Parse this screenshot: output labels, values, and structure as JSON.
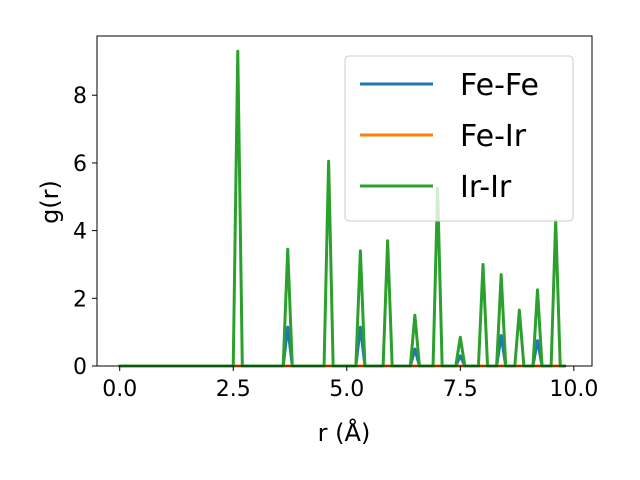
{
  "chart_data": {
    "type": "line",
    "xlabel": "r (Å)",
    "ylabel": "g(r)",
    "xlim": [
      -0.5,
      10.4
    ],
    "ylim": [
      0,
      9.75
    ],
    "xticks": [
      "0.0",
      "2.5",
      "5.0",
      "7.5",
      "10.0"
    ],
    "yticks": [
      "0",
      "2",
      "4",
      "6",
      "8"
    ],
    "xtick_values": [
      0,
      2.5,
      5,
      7.5,
      10
    ],
    "ytick_values": [
      0,
      2,
      4,
      6,
      8
    ],
    "legend_position": "top-right",
    "grid": false,
    "series": [
      {
        "name": "Fe-Fe",
        "color": "#1f77b4",
        "x": [
          0,
          3.6,
          3.7,
          3.8,
          5.2,
          5.3,
          5.4,
          6.4,
          6.5,
          6.6,
          7.4,
          7.5,
          7.6,
          8.3,
          8.4,
          8.5,
          9.1,
          9.2,
          9.3,
          9.8
        ],
        "y": [
          0,
          0,
          1.15,
          0,
          0,
          1.15,
          0,
          0,
          0.5,
          0,
          0,
          0.3,
          0,
          0,
          0.9,
          0,
          0,
          0.75,
          0,
          0
        ]
      },
      {
        "name": "Fe-Ir",
        "color": "#ff7f0e",
        "x": [
          0,
          9.8
        ],
        "y": [
          0,
          0
        ]
      },
      {
        "name": "Ir-Ir",
        "color": "#2ca02c",
        "x": [
          0,
          2.5,
          2.6,
          2.7,
          3.6,
          3.7,
          3.8,
          4.5,
          4.6,
          4.7,
          5.2,
          5.3,
          5.4,
          5.8,
          5.9,
          6.0,
          6.4,
          6.5,
          6.6,
          6.9,
          7.0,
          7.1,
          7.4,
          7.5,
          7.6,
          7.9,
          8.0,
          8.1,
          8.3,
          8.4,
          8.5,
          8.7,
          8.8,
          8.9,
          9.1,
          9.2,
          9.3,
          9.5,
          9.6,
          9.7,
          9.8
        ],
        "y": [
          0,
          0,
          9.3,
          0,
          0,
          3.45,
          0,
          0,
          6.05,
          0,
          0,
          3.4,
          0,
          0,
          3.7,
          0,
          0,
          1.5,
          0,
          0,
          5.25,
          0,
          0,
          0.85,
          0,
          0,
          3.0,
          0,
          0,
          2.7,
          0,
          0,
          1.65,
          0,
          0,
          2.25,
          0,
          0,
          4.3,
          0,
          0
        ]
      }
    ]
  }
}
